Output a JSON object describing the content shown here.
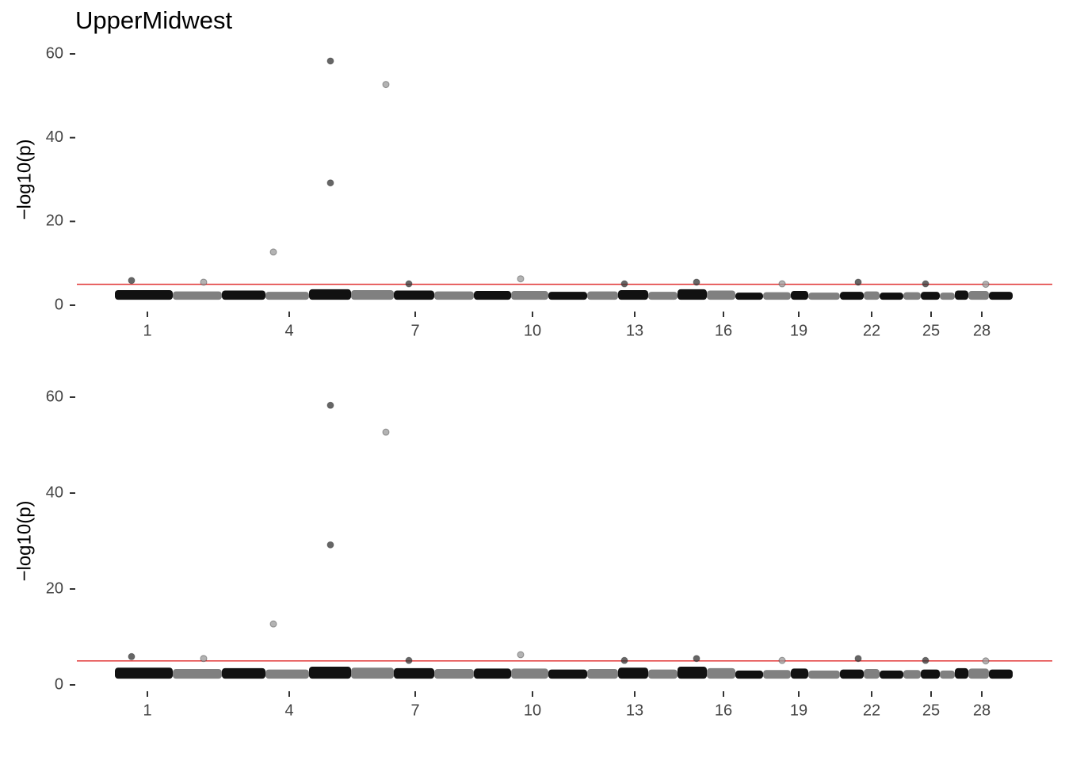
{
  "chart_data": [
    {
      "type": "scatter",
      "title": "UpperMidwest",
      "ylabel": "−log10(p)",
      "xlim": [
        0,
        1231
      ],
      "ylim": [
        0,
        60
      ],
      "yticks": [
        0,
        20,
        40,
        60
      ],
      "xticks": [
        {
          "value": 89,
          "label": "1"
        },
        {
          "value": 268,
          "label": "4"
        },
        {
          "value": 427,
          "label": "7"
        },
        {
          "value": 575,
          "label": "10"
        },
        {
          "value": 704,
          "label": "13"
        },
        {
          "value": 816,
          "label": "16"
        },
        {
          "value": 911,
          "label": "19"
        },
        {
          "value": 1003,
          "label": "22"
        },
        {
          "value": 1078,
          "label": "25"
        },
        {
          "value": 1142,
          "label": "28"
        }
      ],
      "threshold": 5,
      "threshold_color": "#e03030",
      "band_colors": [
        "#111111",
        "#808080"
      ],
      "chromosomes": {
        "x0": [
          48,
          121,
          183,
          238,
          293,
          346,
          400,
          451,
          501,
          548,
          595,
          644,
          683,
          721,
          758,
          795,
          831,
          866,
          901,
          923,
          963,
          993,
          1013,
          1043,
          1065,
          1089,
          1108,
          1125,
          1151
        ],
        "x1": [
          121,
          183,
          238,
          293,
          346,
          400,
          451,
          501,
          548,
          595,
          644,
          683,
          721,
          758,
          795,
          831,
          866,
          901,
          923,
          963,
          993,
          1013,
          1043,
          1065,
          1089,
          1108,
          1125,
          1151,
          1181
        ],
        "low": 1.3,
        "high": [
          3.6,
          3.3,
          3.5,
          3.2,
          3.8,
          3.6,
          3.5,
          3.3,
          3.4,
          3.4,
          3.2,
          3.3,
          3.6,
          3.2,
          3.8,
          3.5,
          3.0,
          3.1,
          3.4,
          3.0,
          3.2,
          3.3,
          3.0,
          3.1,
          3.2,
          3.0,
          3.5,
          3.4,
          3.2
        ]
      },
      "points": {
        "x": [
          320,
          390,
          320,
          248,
          69,
          560,
          160,
          782,
          986,
          1071,
          419,
          691,
          890,
          1147
        ],
        "y": [
          58.3,
          52.7,
          29.2,
          12.7,
          5.9,
          6.3,
          5.5,
          5.5,
          5.5,
          5.1,
          5.1,
          5.1,
          5.1,
          5.0
        ],
        "colors": [
          "#333333",
          "#999999",
          "#333333",
          "#999999",
          "#333333",
          "#999999",
          "#999999",
          "#333333",
          "#333333",
          "#333333",
          "#333333",
          "#333333",
          "#999999",
          "#999999"
        ]
      }
    },
    {
      "type": "scatter",
      "ylabel": "−log10(p)",
      "xlim": [
        0,
        1231
      ],
      "ylim": [
        0,
        60
      ],
      "yticks": [
        0,
        20,
        40,
        60
      ],
      "xticks": [
        {
          "value": 89,
          "label": "1"
        },
        {
          "value": 268,
          "label": "4"
        },
        {
          "value": 427,
          "label": "7"
        },
        {
          "value": 575,
          "label": "10"
        },
        {
          "value": 704,
          "label": "13"
        },
        {
          "value": 816,
          "label": "16"
        },
        {
          "value": 911,
          "label": "19"
        },
        {
          "value": 1003,
          "label": "22"
        },
        {
          "value": 1078,
          "label": "25"
        },
        {
          "value": 1142,
          "label": "28"
        }
      ],
      "threshold": 5,
      "threshold_color": "#e03030",
      "band_colors": [
        "#111111",
        "#808080"
      ],
      "chromosomes": {
        "x0": [
          48,
          121,
          183,
          238,
          293,
          346,
          400,
          451,
          501,
          548,
          595,
          644,
          683,
          721,
          758,
          795,
          831,
          866,
          901,
          923,
          963,
          993,
          1013,
          1043,
          1065,
          1089,
          1108,
          1125,
          1151
        ],
        "x1": [
          121,
          183,
          238,
          293,
          346,
          400,
          451,
          501,
          548,
          595,
          644,
          683,
          721,
          758,
          795,
          831,
          866,
          901,
          923,
          963,
          993,
          1013,
          1043,
          1065,
          1089,
          1108,
          1125,
          1151,
          1181
        ],
        "low": 1.3,
        "high": [
          3.6,
          3.3,
          3.5,
          3.2,
          3.8,
          3.6,
          3.5,
          3.3,
          3.4,
          3.4,
          3.2,
          3.3,
          3.6,
          3.2,
          3.8,
          3.5,
          3.0,
          3.1,
          3.4,
          3.0,
          3.2,
          3.3,
          3.0,
          3.1,
          3.2,
          3.0,
          3.5,
          3.4,
          3.2
        ]
      },
      "points": {
        "x": [
          320,
          390,
          320,
          248,
          69,
          560,
          160,
          782,
          986,
          1071,
          419,
          691,
          890,
          1147
        ],
        "y": [
          58.3,
          52.7,
          29.2,
          12.7,
          5.9,
          6.3,
          5.5,
          5.5,
          5.5,
          5.1,
          5.1,
          5.1,
          5.1,
          5.0
        ],
        "colors": [
          "#333333",
          "#999999",
          "#333333",
          "#999999",
          "#333333",
          "#999999",
          "#999999",
          "#333333",
          "#333333",
          "#333333",
          "#333333",
          "#333333",
          "#999999",
          "#999999"
        ]
      }
    }
  ]
}
